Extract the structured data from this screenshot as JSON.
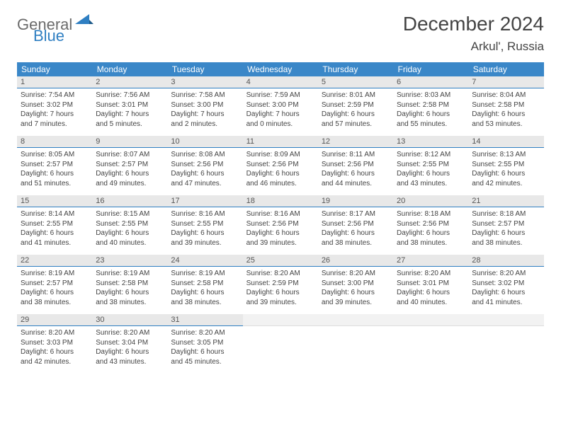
{
  "brand": {
    "text1": "General",
    "text2": "Blue"
  },
  "title": "December 2024",
  "location": "Arkul', Russia",
  "header_bg": "#3a87c8",
  "weekdays": [
    "Sunday",
    "Monday",
    "Tuesday",
    "Wednesday",
    "Thursday",
    "Friday",
    "Saturday"
  ],
  "weeks": [
    [
      {
        "n": "1",
        "sr": "7:54 AM",
        "ss": "3:02 PM",
        "dl": "7 hours and 7 minutes."
      },
      {
        "n": "2",
        "sr": "7:56 AM",
        "ss": "3:01 PM",
        "dl": "7 hours and 5 minutes."
      },
      {
        "n": "3",
        "sr": "7:58 AM",
        "ss": "3:00 PM",
        "dl": "7 hours and 2 minutes."
      },
      {
        "n": "4",
        "sr": "7:59 AM",
        "ss": "3:00 PM",
        "dl": "7 hours and 0 minutes."
      },
      {
        "n": "5",
        "sr": "8:01 AM",
        "ss": "2:59 PM",
        "dl": "6 hours and 57 minutes."
      },
      {
        "n": "6",
        "sr": "8:03 AM",
        "ss": "2:58 PM",
        "dl": "6 hours and 55 minutes."
      },
      {
        "n": "7",
        "sr": "8:04 AM",
        "ss": "2:58 PM",
        "dl": "6 hours and 53 minutes."
      }
    ],
    [
      {
        "n": "8",
        "sr": "8:05 AM",
        "ss": "2:57 PM",
        "dl": "6 hours and 51 minutes."
      },
      {
        "n": "9",
        "sr": "8:07 AM",
        "ss": "2:57 PM",
        "dl": "6 hours and 49 minutes."
      },
      {
        "n": "10",
        "sr": "8:08 AM",
        "ss": "2:56 PM",
        "dl": "6 hours and 47 minutes."
      },
      {
        "n": "11",
        "sr": "8:09 AM",
        "ss": "2:56 PM",
        "dl": "6 hours and 46 minutes."
      },
      {
        "n": "12",
        "sr": "8:11 AM",
        "ss": "2:56 PM",
        "dl": "6 hours and 44 minutes."
      },
      {
        "n": "13",
        "sr": "8:12 AM",
        "ss": "2:55 PM",
        "dl": "6 hours and 43 minutes."
      },
      {
        "n": "14",
        "sr": "8:13 AM",
        "ss": "2:55 PM",
        "dl": "6 hours and 42 minutes."
      }
    ],
    [
      {
        "n": "15",
        "sr": "8:14 AM",
        "ss": "2:55 PM",
        "dl": "6 hours and 41 minutes."
      },
      {
        "n": "16",
        "sr": "8:15 AM",
        "ss": "2:55 PM",
        "dl": "6 hours and 40 minutes."
      },
      {
        "n": "17",
        "sr": "8:16 AM",
        "ss": "2:55 PM",
        "dl": "6 hours and 39 minutes."
      },
      {
        "n": "18",
        "sr": "8:16 AM",
        "ss": "2:56 PM",
        "dl": "6 hours and 39 minutes."
      },
      {
        "n": "19",
        "sr": "8:17 AM",
        "ss": "2:56 PM",
        "dl": "6 hours and 38 minutes."
      },
      {
        "n": "20",
        "sr": "8:18 AM",
        "ss": "2:56 PM",
        "dl": "6 hours and 38 minutes."
      },
      {
        "n": "21",
        "sr": "8:18 AM",
        "ss": "2:57 PM",
        "dl": "6 hours and 38 minutes."
      }
    ],
    [
      {
        "n": "22",
        "sr": "8:19 AM",
        "ss": "2:57 PM",
        "dl": "6 hours and 38 minutes."
      },
      {
        "n": "23",
        "sr": "8:19 AM",
        "ss": "2:58 PM",
        "dl": "6 hours and 38 minutes."
      },
      {
        "n": "24",
        "sr": "8:19 AM",
        "ss": "2:58 PM",
        "dl": "6 hours and 38 minutes."
      },
      {
        "n": "25",
        "sr": "8:20 AM",
        "ss": "2:59 PM",
        "dl": "6 hours and 39 minutes."
      },
      {
        "n": "26",
        "sr": "8:20 AM",
        "ss": "3:00 PM",
        "dl": "6 hours and 39 minutes."
      },
      {
        "n": "27",
        "sr": "8:20 AM",
        "ss": "3:01 PM",
        "dl": "6 hours and 40 minutes."
      },
      {
        "n": "28",
        "sr": "8:20 AM",
        "ss": "3:02 PM",
        "dl": "6 hours and 41 minutes."
      }
    ],
    [
      {
        "n": "29",
        "sr": "8:20 AM",
        "ss": "3:03 PM",
        "dl": "6 hours and 42 minutes."
      },
      {
        "n": "30",
        "sr": "8:20 AM",
        "ss": "3:04 PM",
        "dl": "6 hours and 43 minutes."
      },
      {
        "n": "31",
        "sr": "8:20 AM",
        "ss": "3:05 PM",
        "dl": "6 hours and 45 minutes."
      },
      null,
      null,
      null,
      null
    ]
  ],
  "labels": {
    "sunrise": "Sunrise:",
    "sunset": "Sunset:",
    "daylight": "Daylight:"
  }
}
